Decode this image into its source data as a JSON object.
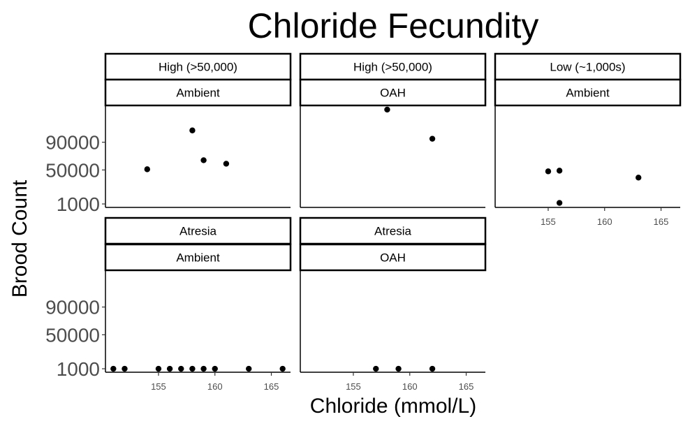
{
  "chart_data": {
    "type": "scatter",
    "title": "Chloride Fecundity",
    "xlabel": "Chloride (mmol/L)",
    "ylabel": "Brood Count",
    "xlim": [
      150.3,
      166.7
    ],
    "ylim": [
      -4000,
      142000
    ],
    "x_ticks": [
      155,
      160,
      165
    ],
    "y_ticks": [
      1000,
      50000,
      90000
    ],
    "y_tick_labels": [
      "1000",
      "50000",
      "90000"
    ],
    "grid": false,
    "point_color": "#000000",
    "panels": [
      {
        "strips": [
          "High (>50,000)",
          "Ambient"
        ],
        "points": [
          {
            "x": 154,
            "y": 51000
          },
          {
            "x": 158,
            "y": 107000
          },
          {
            "x": 159,
            "y": 64000
          },
          {
            "x": 161,
            "y": 59000
          }
        ]
      },
      {
        "strips": [
          "High (>50,000)",
          "OAH"
        ],
        "points": [
          {
            "x": 158,
            "y": 137000
          },
          {
            "x": 162,
            "y": 95000
          }
        ]
      },
      {
        "strips": [
          "Low (~1,000s)",
          "Ambient"
        ],
        "points": [
          {
            "x": 155,
            "y": 48000
          },
          {
            "x": 156,
            "y": 49000
          },
          {
            "x": 156,
            "y": 2500
          },
          {
            "x": 163,
            "y": 39000
          }
        ]
      },
      {
        "strips": [
          "Atresia",
          "Ambient"
        ],
        "points": [
          {
            "x": 151,
            "y": 1000
          },
          {
            "x": 152,
            "y": 1000
          },
          {
            "x": 155,
            "y": 1000
          },
          {
            "x": 156,
            "y": 1000
          },
          {
            "x": 157,
            "y": 1000
          },
          {
            "x": 158,
            "y": 1000
          },
          {
            "x": 159,
            "y": 1000
          },
          {
            "x": 160,
            "y": 1000
          },
          {
            "x": 163,
            "y": 1000
          },
          {
            "x": 166,
            "y": 1000
          }
        ]
      },
      {
        "strips": [
          "Atresia",
          "OAH"
        ],
        "points": [
          {
            "x": 157,
            "y": 1000
          },
          {
            "x": 159,
            "y": 1000
          },
          {
            "x": 162,
            "y": 1000
          }
        ]
      }
    ]
  }
}
